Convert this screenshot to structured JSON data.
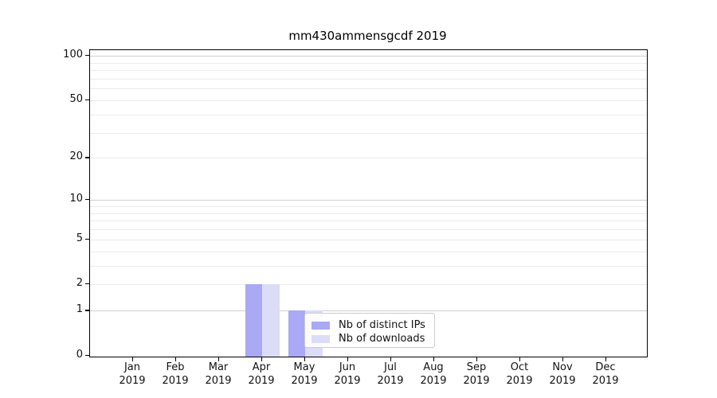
{
  "figure": {
    "background": "#ffffff"
  },
  "chart_data": {
    "type": "bar",
    "title": "mm430ammensgcdf 2019",
    "x_categories": [
      "Jan",
      "Feb",
      "Mar",
      "Apr",
      "May",
      "Jun",
      "Jul",
      "Aug",
      "Sep",
      "Oct",
      "Nov",
      "Dec"
    ],
    "x_year": "2019",
    "series": [
      {
        "name": "Nb of distinct IPs",
        "color": "#a9a9f5",
        "values": [
          0,
          0,
          0,
          2,
          1,
          0,
          0,
          0,
          0,
          0,
          0,
          0
        ]
      },
      {
        "name": "Nb of downloads",
        "color": "#dcdcf8",
        "values": [
          0,
          0,
          0,
          2,
          1,
          0,
          0,
          0,
          0,
          0,
          0,
          0
        ]
      }
    ],
    "y_ticks": [
      0,
      1,
      2,
      5,
      10,
      20,
      50,
      100
    ],
    "y_scale": "log1p",
    "y_axis_range": [
      0,
      110
    ],
    "grid": {
      "minor_values": [
        2,
        3,
        4,
        5,
        6,
        7,
        8,
        9,
        20,
        30,
        40,
        50,
        60,
        70,
        80,
        90
      ],
      "major_values": [
        1,
        10,
        100
      ],
      "minor_color": "#ebebeb",
      "major_color": "#d0d0d0"
    },
    "legend": {
      "position": "lower-right-inside",
      "entries": [
        "Nb of distinct IPs",
        "Nb of downloads"
      ]
    },
    "axes_color": "#000000",
    "tick_label_color": "#111111"
  }
}
